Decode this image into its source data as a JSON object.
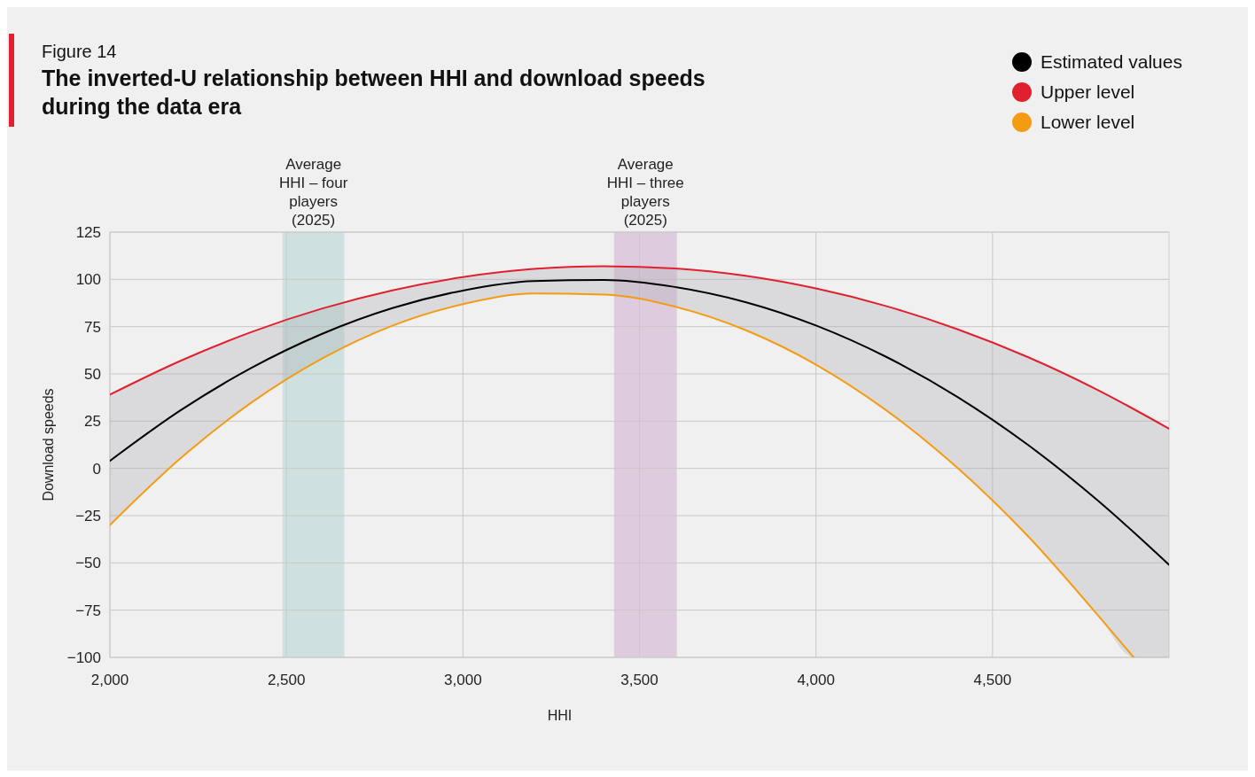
{
  "chart_data": {
    "type": "line",
    "subtitle": "Figure 14",
    "title": "The inverted-U relationship between HHI and download speeds during the data era",
    "xlabel": "HHI",
    "ylabel": "Download speeds",
    "xlim": [
      2000,
      5000
    ],
    "ylim": [
      -100,
      125
    ],
    "xticks": [
      {
        "value": 2000,
        "label": "2,000"
      },
      {
        "value": 2500,
        "label": "2,500"
      },
      {
        "value": 3000,
        "label": "3,000"
      },
      {
        "value": 3500,
        "label": "3,500"
      },
      {
        "value": 4000,
        "label": "4,000"
      },
      {
        "value": 4500,
        "label": "4,500"
      }
    ],
    "yticks": [
      {
        "value": -100,
        "label": "−100"
      },
      {
        "value": -75,
        "label": "−75"
      },
      {
        "value": -50,
        "label": "−50"
      },
      {
        "value": -25,
        "label": "−25"
      },
      0,
      25,
      50,
      75,
      100,
      125
    ],
    "grid": true,
    "legend": "top right",
    "marker": "none",
    "line_style": "solid",
    "bands": [
      {
        "axis": "x",
        "from": 2489,
        "to": 2664,
        "label": "Average\nHHI – four\nplayers\n(2025)",
        "color": "#c8dedb"
      },
      {
        "axis": "x",
        "from": 3428,
        "to": 3606,
        "label": "Average\nHHI – three\nplayers\n(2025)",
        "color": "#dbc6da"
      }
    ],
    "series": [
      {
        "name": "Estimated values",
        "color": "#000000",
        "x": [
          2000,
          2200,
          2400,
          2600,
          2800,
          3000,
          3200,
          3400,
          3600,
          3800,
          4000,
          4200,
          4400,
          4600,
          4800,
          4900,
          5000
        ],
        "values": [
          4,
          30.7,
          53.1,
          71.1,
          84.8,
          94.1,
          99.1,
          99.7,
          96.0,
          88.0,
          75.6,
          58.9,
          37.9,
          12.5,
          -17.3,
          -33.8,
          -51
        ],
        "upper": [
          39,
          56.9,
          72.1,
          84.5,
          94.2,
          101.2,
          105.5,
          107,
          105.8,
          101.9,
          95.2,
          85.8,
          73.7,
          58.9,
          41.3,
          31.5,
          21
        ],
        "lower": [
          -30,
          5.3,
          34.7,
          58.0,
          75.5,
          86.9,
          92.5,
          92.0,
          85.6,
          73.2,
          54.9,
          30.6,
          0.4,
          -35.8,
          -78,
          -100,
          -100
        ]
      },
      {
        "name": "Upper level",
        "color": "#e0202e",
        "x": [
          2000,
          2200,
          2400,
          2600,
          2800,
          3000,
          3200,
          3400,
          3600,
          3800,
          4000,
          4200,
          4400,
          4600,
          4800,
          5000
        ],
        "values": [
          39,
          56.9,
          72.1,
          84.5,
          94.2,
          101.2,
          105.5,
          107,
          105.8,
          101.9,
          95.2,
          85.8,
          73.7,
          58.9,
          41.3,
          21
        ]
      },
      {
        "name": "Lower level",
        "color": "#f39c12",
        "x": [
          2000,
          2200,
          2400,
          2600,
          2800,
          3000,
          3200,
          3400,
          3600,
          3800,
          4000,
          4200,
          4400,
          4600,
          4800,
          4900
        ],
        "values": [
          -30,
          5.3,
          34.7,
          58.0,
          75.5,
          86.9,
          92.5,
          92.0,
          85.6,
          73.2,
          54.9,
          30.6,
          0.4,
          -35.8,
          -78,
          -100
        ]
      }
    ]
  }
}
